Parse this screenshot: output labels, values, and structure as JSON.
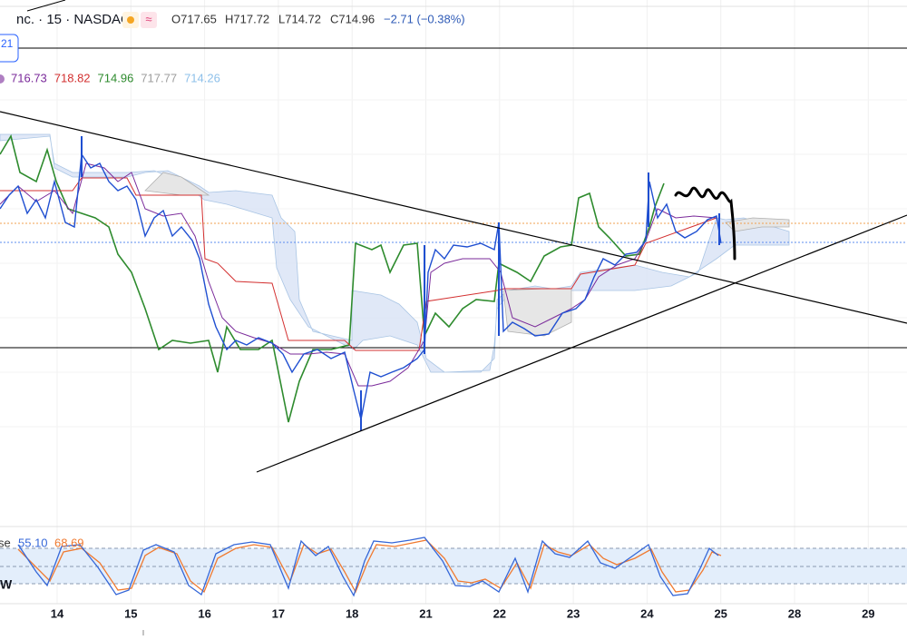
{
  "header": {
    "symbol": "nc. · 15 · NASDAQ",
    "open": "O717.65",
    "high": "H717.72",
    "low": "L714.72",
    "close": "C714.96",
    "change": "−2.71 (−0.38%)"
  },
  "badge": "21",
  "ichimoku": {
    "values": [
      "716.73",
      "718.82",
      "714.96",
      "717.77",
      "714.26"
    ]
  },
  "stochastic": {
    "label": "se",
    "values": [
      "55.10",
      "68.69"
    ]
  },
  "side_label": "W",
  "x_axis": {
    "labels": [
      "14",
      "15",
      "16",
      "17",
      "18",
      "21",
      "22",
      "23",
      "24",
      "25",
      "28",
      "29"
    ]
  }
}
